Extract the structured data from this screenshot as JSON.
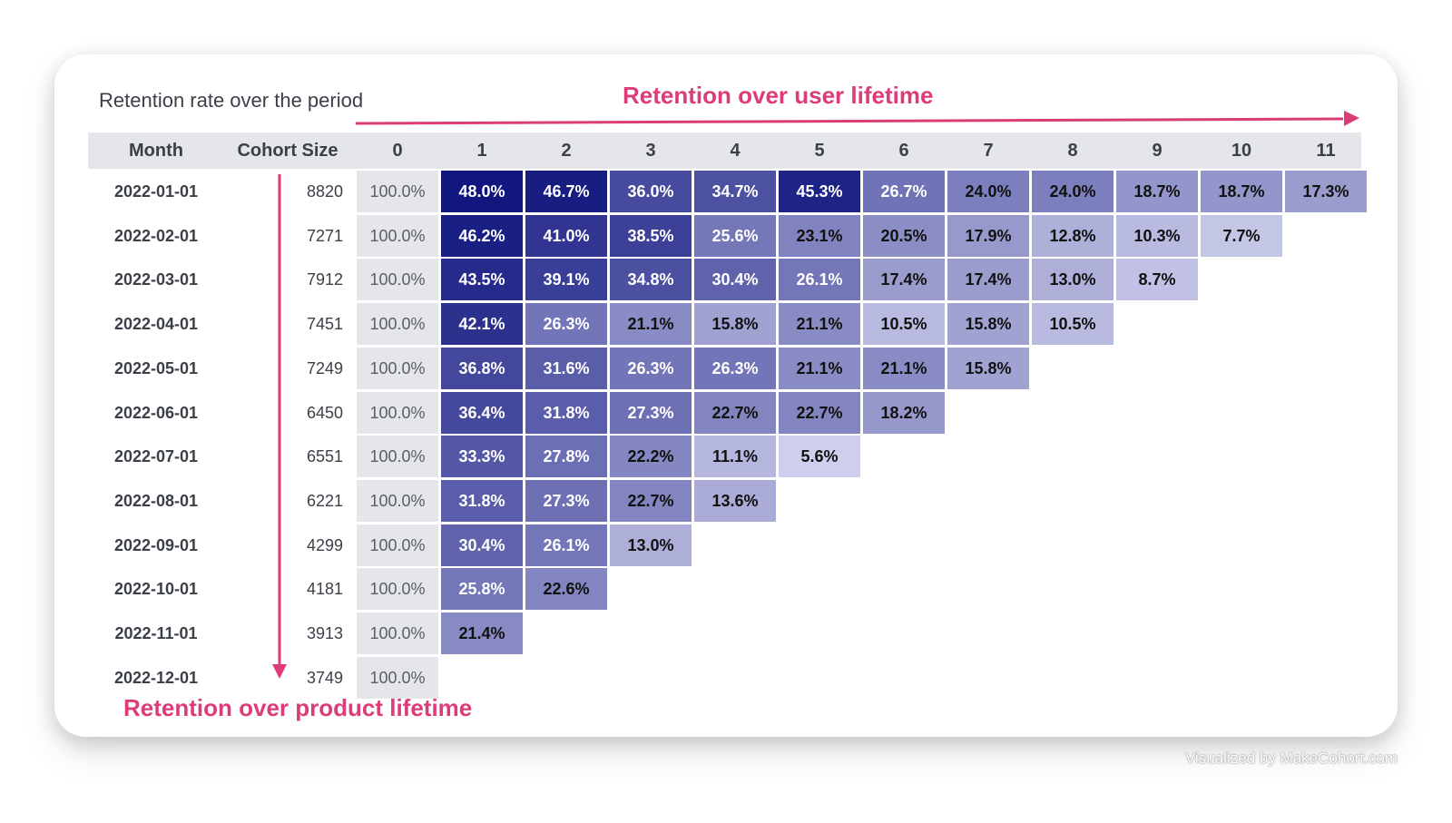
{
  "title": "Retention rate over the period",
  "axis_user": "Retention over user lifetime",
  "axis_product": "Retention over product lifetime",
  "watermark": "Visualized by MakeCohort.com",
  "colors": {
    "arrow": "#dc3c78",
    "header_bg": "#e5e6ea",
    "scale_low": "#e6e7fa",
    "scale_high": "#12177f"
  },
  "chart_data": {
    "type": "heatmap",
    "title": "Retention rate over the period",
    "xlabel": "Retention over user lifetime",
    "ylabel": "Retention over product lifetime",
    "headers": {
      "month": "Month",
      "size": "Cohort Size",
      "periods": [
        "0",
        "1",
        "2",
        "3",
        "4",
        "5",
        "6",
        "7",
        "8",
        "9",
        "10",
        "11"
      ]
    },
    "rows": [
      {
        "month": "2022-01-01",
        "size": "8820",
        "values": [
          "100.0%",
          "48.0%",
          "46.7%",
          "36.0%",
          "34.7%",
          "45.3%",
          "26.7%",
          "24.0%",
          "24.0%",
          "18.7%",
          "18.7%",
          "17.3%"
        ]
      },
      {
        "month": "2022-02-01",
        "size": "7271",
        "values": [
          "100.0%",
          "46.2%",
          "41.0%",
          "38.5%",
          "25.6%",
          "23.1%",
          "20.5%",
          "17.9%",
          "12.8%",
          "10.3%",
          "7.7%"
        ]
      },
      {
        "month": "2022-03-01",
        "size": "7912",
        "values": [
          "100.0%",
          "43.5%",
          "39.1%",
          "34.8%",
          "30.4%",
          "26.1%",
          "17.4%",
          "17.4%",
          "13.0%",
          "8.7%"
        ]
      },
      {
        "month": "2022-04-01",
        "size": "7451",
        "values": [
          "100.0%",
          "42.1%",
          "26.3%",
          "21.1%",
          "15.8%",
          "21.1%",
          "10.5%",
          "15.8%",
          "10.5%"
        ]
      },
      {
        "month": "2022-05-01",
        "size": "7249",
        "values": [
          "100.0%",
          "36.8%",
          "31.6%",
          "26.3%",
          "26.3%",
          "21.1%",
          "21.1%",
          "15.8%"
        ]
      },
      {
        "month": "2022-06-01",
        "size": "6450",
        "values": [
          "100.0%",
          "36.4%",
          "31.8%",
          "27.3%",
          "22.7%",
          "22.7%",
          "18.2%"
        ]
      },
      {
        "month": "2022-07-01",
        "size": "6551",
        "values": [
          "100.0%",
          "33.3%",
          "27.8%",
          "22.2%",
          "11.1%",
          "5.6%"
        ]
      },
      {
        "month": "2022-08-01",
        "size": "6221",
        "values": [
          "100.0%",
          "31.8%",
          "27.3%",
          "22.7%",
          "13.6%"
        ]
      },
      {
        "month": "2022-09-01",
        "size": "4299",
        "values": [
          "100.0%",
          "30.4%",
          "26.1%",
          "13.0%"
        ]
      },
      {
        "month": "2022-10-01",
        "size": "4181",
        "values": [
          "100.0%",
          "25.8%",
          "22.6%"
        ]
      },
      {
        "month": "2022-11-01",
        "size": "3913",
        "values": [
          "100.0%",
          "21.4%"
        ]
      },
      {
        "month": "2022-12-01",
        "size": "3749",
        "values": [
          "100.0%"
        ]
      }
    ]
  }
}
